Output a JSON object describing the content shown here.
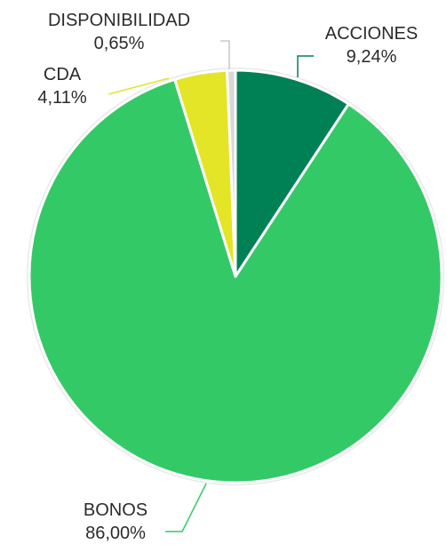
{
  "chart_data": {
    "type": "pie",
    "title": "",
    "slices": [
      {
        "label": "ACCIONES",
        "value": 9.24,
        "display": "9,24%",
        "color": "#008055"
      },
      {
        "label": "BONOS",
        "value": 86.0,
        "display": "86,00%",
        "color": "#34c967"
      },
      {
        "label": "CDA",
        "value": 4.11,
        "display": "4,11%",
        "color": "#e3e526"
      },
      {
        "label": "DISPONIBILIDAD",
        "value": 0.65,
        "display": "0,65%",
        "color": "#d8d8d8"
      }
    ],
    "start": "12 o'clock",
    "direction": "clockwise",
    "legend": "none",
    "label_placement": "outside with leader lines"
  }
}
